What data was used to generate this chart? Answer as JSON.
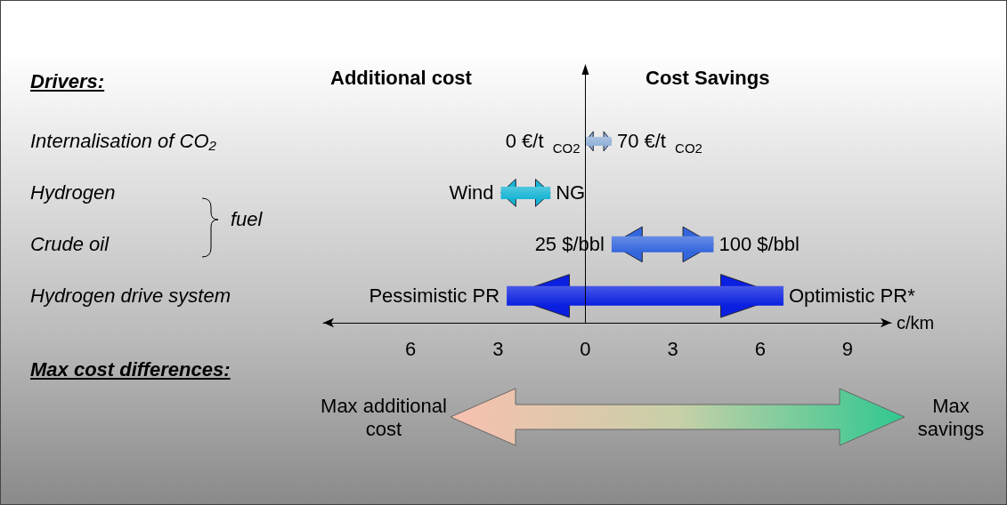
{
  "chart_data": {
    "type": "bar",
    "orientation": "horizontal",
    "categories": [
      "Internalisation of CO₂",
      "Hydrogen",
      "Crude oil",
      "Hydrogen drive system"
    ],
    "base": [
      0,
      -2.9,
      0.9,
      -2.7
    ],
    "values": [
      0.9,
      1.7,
      3.5,
      9.5
    ],
    "colors": [
      "#8fb0d8",
      "#17b5d4",
      "#3366dd",
      "#0a1fe0"
    ],
    "xlabel": "c/km",
    "xlim": [
      -9,
      10.5
    ],
    "xticks": [
      {
        "value": -6,
        "label": "6"
      },
      {
        "value": -3,
        "label": "3"
      },
      0,
      3,
      6,
      9
    ],
    "grid": false,
    "ref_lines": [
      {
        "axis": "x",
        "value": 0,
        "color": "#000000"
      }
    ],
    "annotations": [
      "Drivers:",
      "Additional cost",
      "Cost Savings",
      "fuel",
      "Max cost differences:",
      "Max additional cost",
      "Max savings",
      {
        "text": "0 €/t $_{CO2}$",
        "x": 0,
        "y": "Internalisation of CO₂"
      },
      {
        "text": "70 €/t $_{CO2}$",
        "x": 0.9,
        "y": "Internalisation of CO₂"
      },
      {
        "text": "Wind",
        "x": -2.9,
        "y": "Hydrogen"
      },
      {
        "text": "NG",
        "x": -1.2,
        "y": "Hydrogen"
      },
      {
        "text": "25 $/bbl",
        "x": 0.9,
        "y": "Crude oil"
      },
      {
        "text": "100 $/bbl",
        "x": 4.4,
        "y": "Crude oil"
      },
      {
        "text": "Pessimistic PR",
        "x": -2.7,
        "y": "Hydrogen drive system"
      },
      {
        "text": "Optimistic PR*",
        "x": 6.8,
        "y": "Hydrogen drive system"
      }
    ]
  }
}
